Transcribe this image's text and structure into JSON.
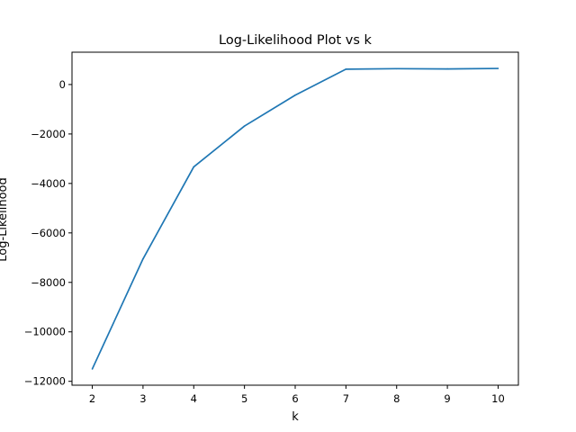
{
  "chart_data": {
    "type": "line",
    "title": "Log-Likelihood Plot vs k",
    "xlabel": "k",
    "ylabel": "Log-Likelihood",
    "x": [
      2,
      3,
      4,
      5,
      6,
      7,
      8,
      9,
      10
    ],
    "series": [
      {
        "values": [
          -11500,
          -7050,
          -3330,
          -1680,
          -430,
          620,
          640,
          630,
          650
        ],
        "color": "#1f77b4"
      }
    ],
    "xticks": [
      2,
      3,
      4,
      5,
      6,
      7,
      8,
      9,
      10
    ],
    "yticks": [
      -12000,
      -10000,
      -8000,
      -6000,
      -4000,
      -2000,
      0
    ],
    "xlim": [
      1.6,
      10.4
    ],
    "ylim": [
      -12157,
      1307
    ],
    "grid": false,
    "legend": "none"
  }
}
